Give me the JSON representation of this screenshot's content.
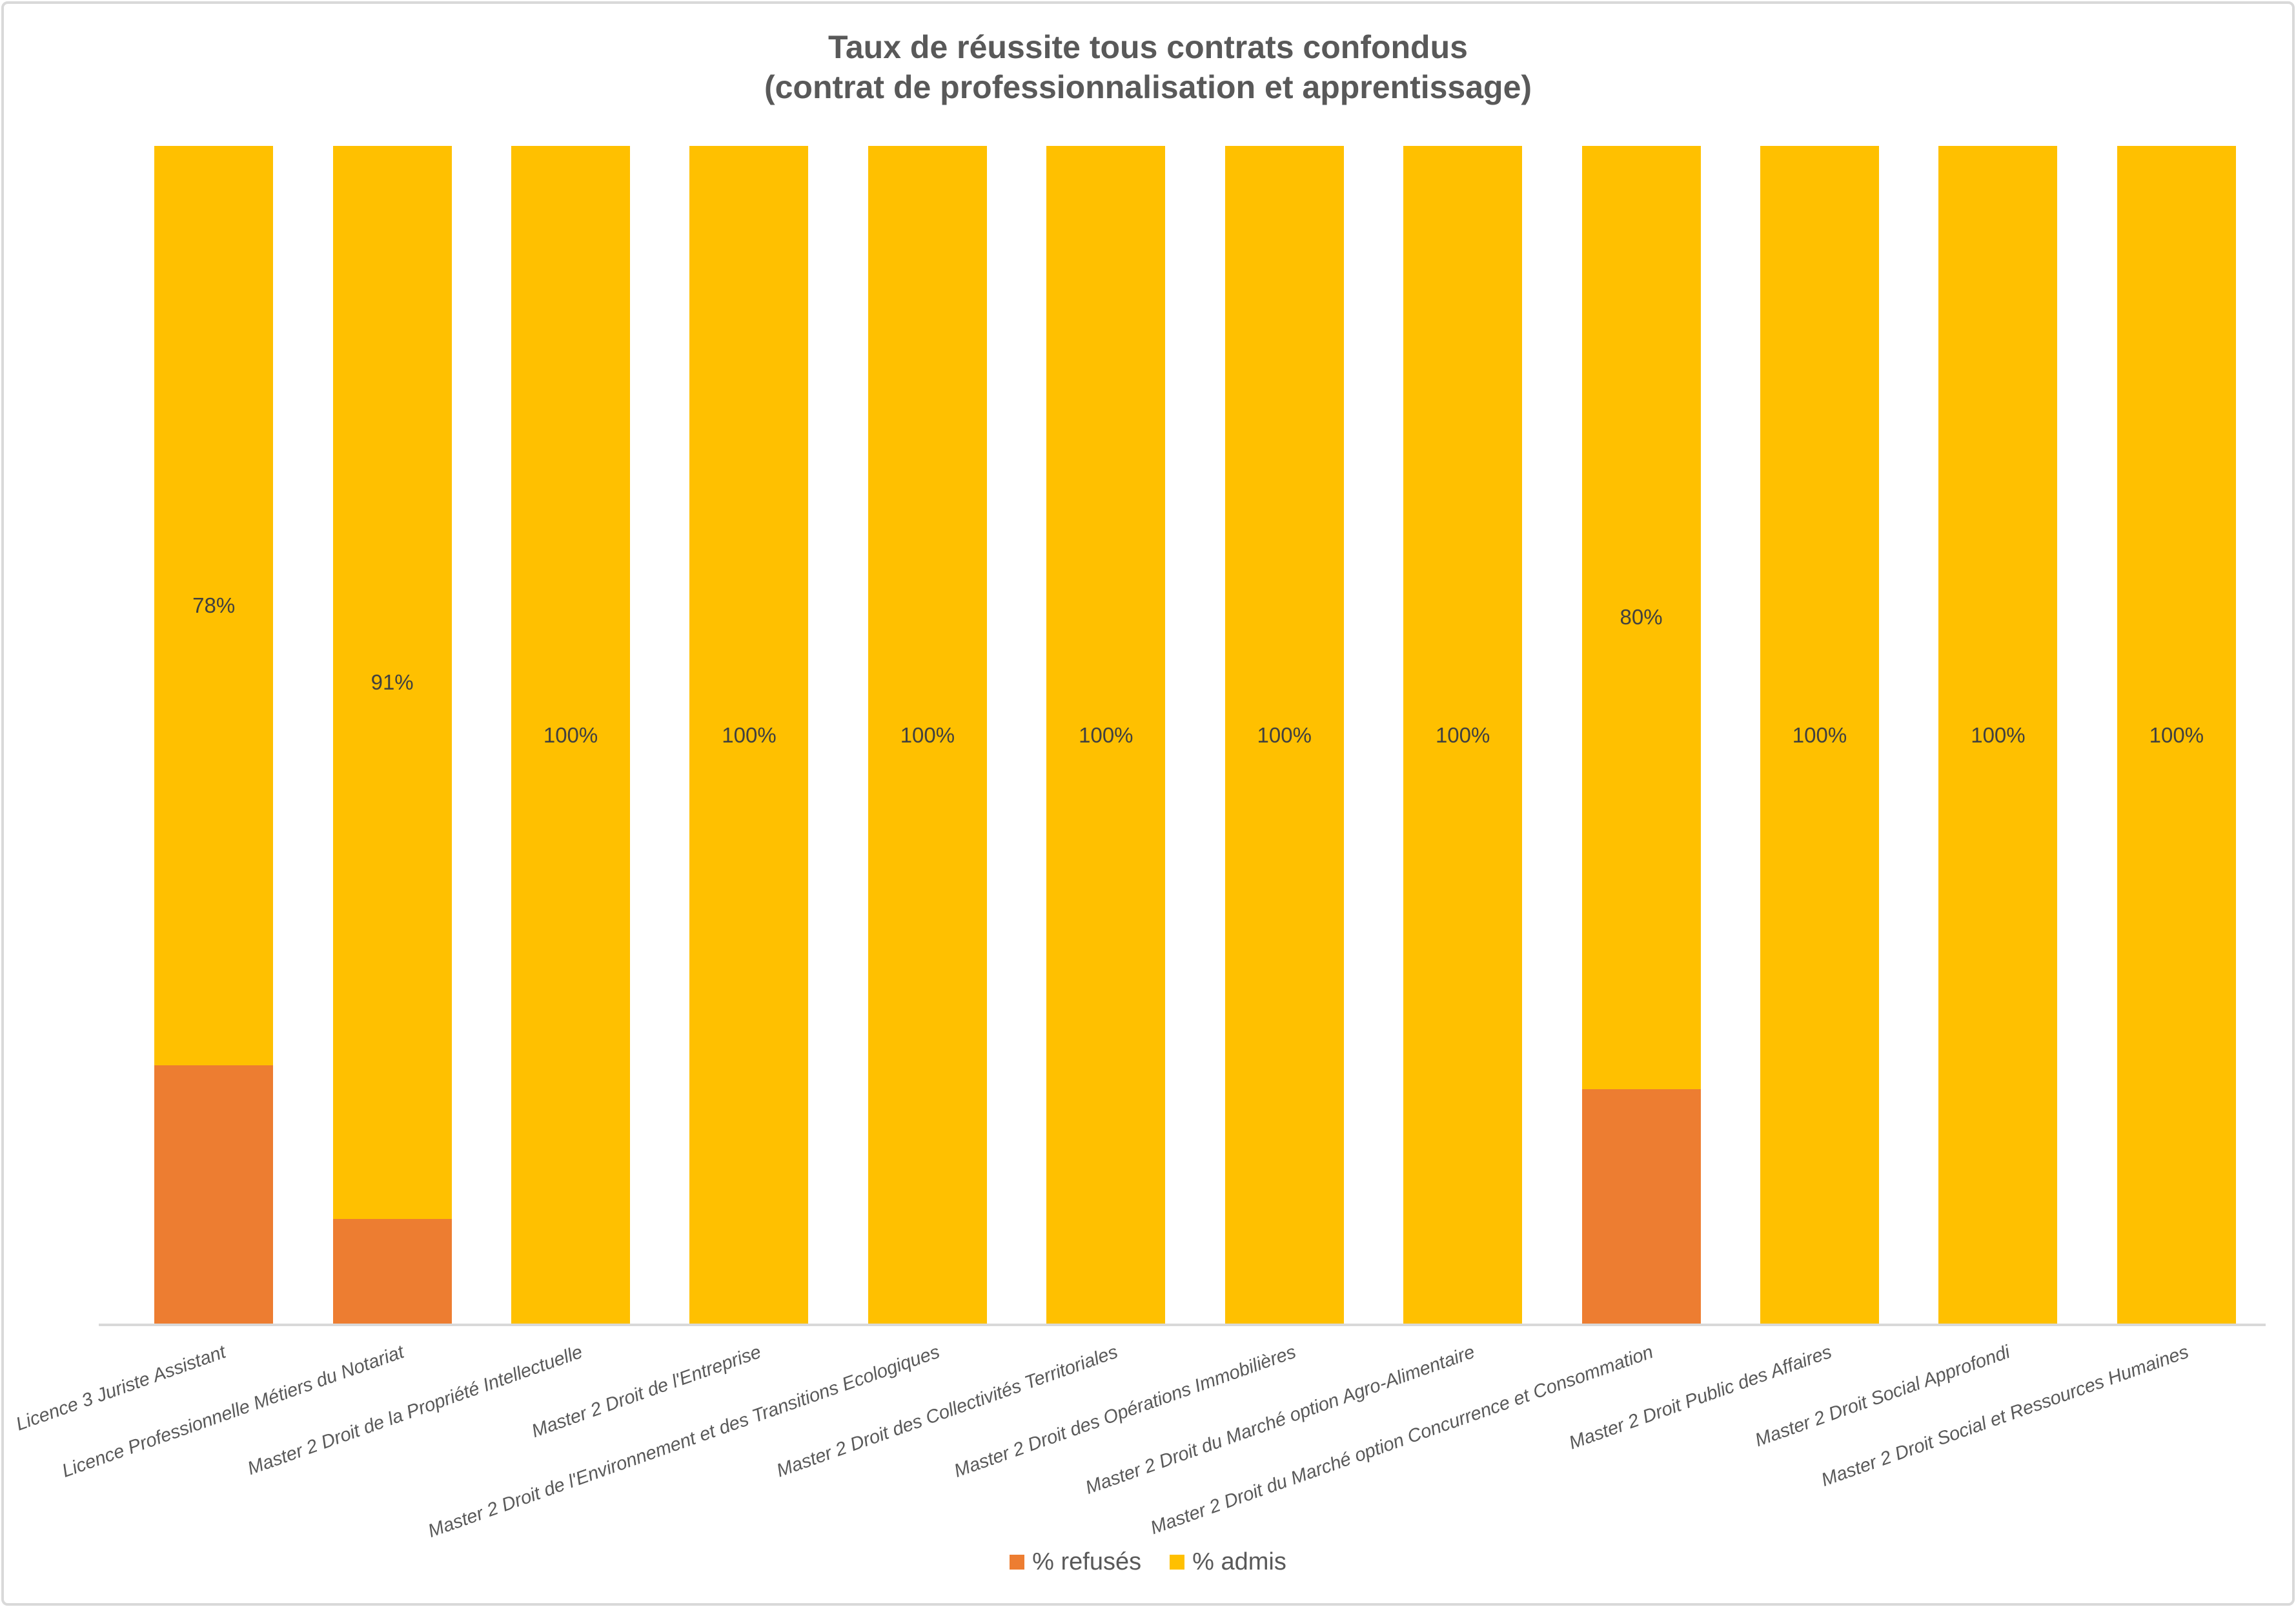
{
  "title": {
    "line1": "Taux de réussite tous contrats confondus",
    "line2": "(contrat de professionnalisation et apprentissage)"
  },
  "colors": {
    "admis": "#FFC000",
    "refuses": "#ED7D31",
    "title_text": "#595959",
    "axis_label_text": "#595959",
    "data_label_text": "#404040",
    "axis_line": "#D9D9D9",
    "frame_border": "#D9D9D9",
    "background": "#FFFFFF"
  },
  "chart_data": {
    "type": "bar",
    "subtype": "stacked-100-percent",
    "orientation": "vertical",
    "title": "Taux de réussite tous contrats confondus (contrat de professionnalisation et apprentissage)",
    "xlabel": "",
    "ylabel": "",
    "ylim": [
      0,
      100
    ],
    "grid": false,
    "legend_position": "bottom",
    "categories": [
      "Licence 3 Juriste Assistant",
      "Licence Professionnelle Métiers du Notariat",
      "Master 2 Droit de la Propriété Intellectuelle",
      "Master 2 Droit de l'Entreprise",
      "Master 2 Droit de l'Environnement et des Transitions Ecologiques",
      "Master 2 Droit des Collectivités Territoriales",
      "Master 2 Droit des Opérations Immobilières",
      "Master 2 Droit du Marché option Agro-Alimentaire",
      "Master 2 Droit du Marché option Concurrence et Consommation",
      "Master 2 Droit Public des Affaires",
      "Master 2 Droit Social Approfondi",
      "Master 2 Droit Social et Ressources Humaines"
    ],
    "series": [
      {
        "name": "% refusés",
        "color": "#ED7D31",
        "stack_order": "bottom",
        "values": [
          22,
          9,
          0,
          0,
          0,
          0,
          0,
          0,
          20,
          0,
          0,
          0
        ],
        "data_labels": [
          "",
          "",
          "",
          "",
          "",
          "",
          "",
          "",
          "",
          "",
          "",
          ""
        ]
      },
      {
        "name": "% admis",
        "color": "#FFC000",
        "stack_order": "top",
        "values": [
          78,
          91,
          100,
          100,
          100,
          100,
          100,
          100,
          80,
          100,
          100,
          100
        ],
        "data_labels": [
          "78%",
          "91%",
          "100%",
          "100%",
          "100%",
          "100%",
          "100%",
          "100%",
          "80%",
          "100%",
          "100%",
          "100%"
        ]
      }
    ]
  }
}
